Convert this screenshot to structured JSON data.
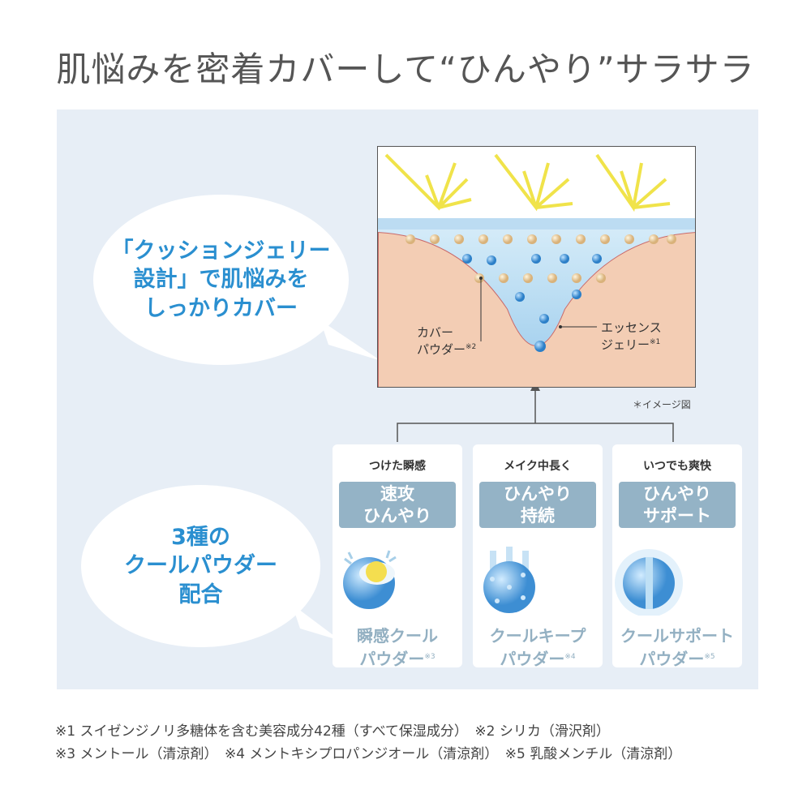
{
  "title": "肌悩みを密着カバーして“ひんやり”サラサラ",
  "bubble1": [
    "「クッションジェリー",
    "設計」で肌悩みを",
    "しっかりカバー"
  ],
  "bubble2": [
    "3種の",
    "クールパウダー",
    "配合"
  ],
  "diagram": {
    "label_powder": [
      "カバー",
      "パウダー"
    ],
    "label_powder_ref": "※2",
    "label_jelly": [
      "エッセンス",
      "ジェリー"
    ],
    "label_jelly_ref": "※1",
    "image_note": "＊イメージ図"
  },
  "cards": [
    {
      "head": "つけた瞬感",
      "tag": [
        "速攻",
        "ひんやり"
      ],
      "name": [
        "瞬感クール",
        "パウダー"
      ],
      "ref": "※3",
      "icon": "half-sphere-powder-icon"
    },
    {
      "head": "メイク中長く",
      "tag": [
        "ひんやり",
        "持続"
      ],
      "name": [
        "クールキープ",
        "パウダー"
      ],
      "ref": "※4",
      "icon": "porous-sphere-powder-icon"
    },
    {
      "head": "いつでも爽快",
      "tag": [
        "ひんやり",
        "サポート"
      ],
      "name": [
        "クールサポート",
        "パウダー"
      ],
      "ref": "※5",
      "icon": "channel-sphere-powder-icon"
    }
  ],
  "footnotes": [
    "※1 スイゼンジノリ多糖体を含む美容成分42種（すべて保湿成分）　※2 シリカ（滑沢剤）",
    "※3 メントール（清涼剤）　※4 メントキシプロパンジオール（清涼剤）　※5 乳酸メンチル（清涼剤）"
  ],
  "colors": {
    "accent": "#2a8fd0",
    "panel": "#e7eef6",
    "tag": "#94b3c6",
    "powder_name": "#93b0c2",
    "skin": "#f0c8b0"
  }
}
